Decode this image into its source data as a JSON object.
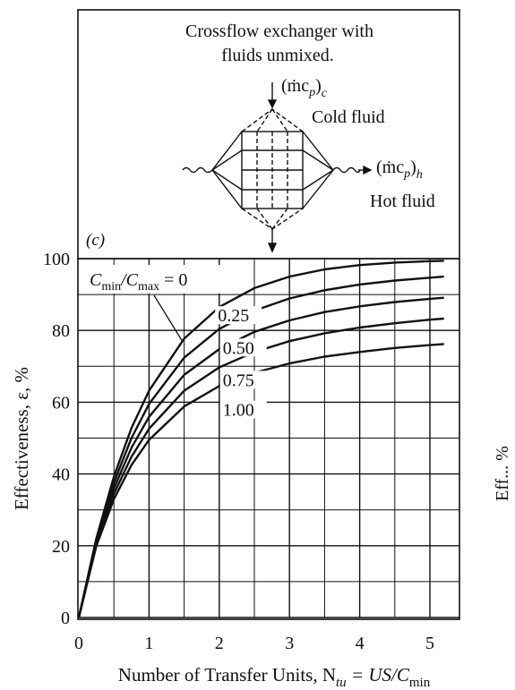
{
  "panel": {
    "label": "(c)",
    "caption_line1": "Crossflow exchanger with",
    "caption_line2": "fluids unmixed.",
    "cold_flow_symbol": "(ṁc",
    "cold_flow_p": "p",
    "cold_flow_close": ")",
    "cold_flow_sub": "c",
    "cold_label": "Cold fluid",
    "hot_flow_symbol": "(ṁc",
    "hot_flow_p": "p",
    "hot_flow_close": ")",
    "hot_flow_sub": "h",
    "hot_label": "Hot fluid"
  },
  "axes": {
    "ylabel": "Effectiveness, ε, %",
    "xlabel_prefix": "Number of Transfer Units, N",
    "xlabel_sub": "tu",
    "xlabel_mid": " = US/C",
    "xlabel_sub2": "min",
    "yticks": [
      "0",
      "20",
      "40",
      "60",
      "80",
      "100"
    ],
    "xticks": [
      "0",
      "1",
      "2",
      "3",
      "4",
      "5"
    ],
    "right_edge_fragment": "Eff...        %"
  },
  "ratio_label": {
    "prefix": "C",
    "sub1": "min",
    "slash": "/C",
    "sub2": "max",
    "suffix": " = 0"
  },
  "chart_data": {
    "type": "line",
    "title": "Crossflow exchanger with fluids unmixed.",
    "xlabel": "Number of Transfer Units, Ntu = US/Cmin",
    "ylabel": "Effectiveness, ε, %",
    "xlim": [
      0,
      5.5
    ],
    "ylim": [
      0,
      100
    ],
    "grid": true,
    "series": [
      {
        "name": "0",
        "x": [
          0,
          0.25,
          0.5,
          0.75,
          1.0,
          1.5,
          2.0,
          2.5,
          3.0,
          3.5,
          4.0,
          4.5,
          5.0,
          5.2
        ],
        "values": [
          0,
          22.1,
          39.3,
          52.8,
          63.2,
          77.7,
          86.5,
          91.8,
          95.0,
          97.0,
          98.2,
          98.9,
          99.3,
          99.4
        ]
      },
      {
        "name": "0.25",
        "x": [
          0,
          0.25,
          0.5,
          0.75,
          1.0,
          1.5,
          2.0,
          2.5,
          3.0,
          3.5,
          4.0,
          4.5,
          5.0,
          5.2
        ],
        "values": [
          0,
          21.6,
          37.6,
          50.0,
          59.5,
          72.4,
          80.4,
          85.5,
          88.9,
          91.2,
          92.8,
          93.9,
          94.7,
          95.0
        ]
      },
      {
        "name": "0.50",
        "x": [
          0,
          0.25,
          0.5,
          0.75,
          1.0,
          1.5,
          2.0,
          2.5,
          3.0,
          3.5,
          4.0,
          4.5,
          5.0,
          5.2
        ],
        "values": [
          0,
          21.0,
          36.0,
          47.3,
          55.9,
          67.6,
          74.8,
          79.6,
          82.8,
          85.1,
          86.7,
          87.9,
          88.8,
          89.1
        ]
      },
      {
        "name": "0.75",
        "x": [
          0,
          0.25,
          0.5,
          0.75,
          1.0,
          1.5,
          2.0,
          2.5,
          3.0,
          3.5,
          4.0,
          4.5,
          5.0,
          5.2
        ],
        "values": [
          0,
          20.5,
          34.5,
          44.8,
          52.6,
          63.2,
          69.7,
          74.0,
          77.0,
          79.2,
          80.8,
          82.0,
          83.0,
          83.3
        ]
      },
      {
        "name": "1.00",
        "x": [
          0,
          0.25,
          0.5,
          0.75,
          1.0,
          1.5,
          2.0,
          2.5,
          3.0,
          3.5,
          4.0,
          4.5,
          5.0,
          5.2
        ],
        "values": [
          0,
          20.0,
          33.0,
          42.5,
          49.5,
          58.8,
          64.5,
          68.2,
          70.8,
          72.7,
          74.0,
          75.1,
          75.9,
          76.2
        ]
      }
    ]
  }
}
